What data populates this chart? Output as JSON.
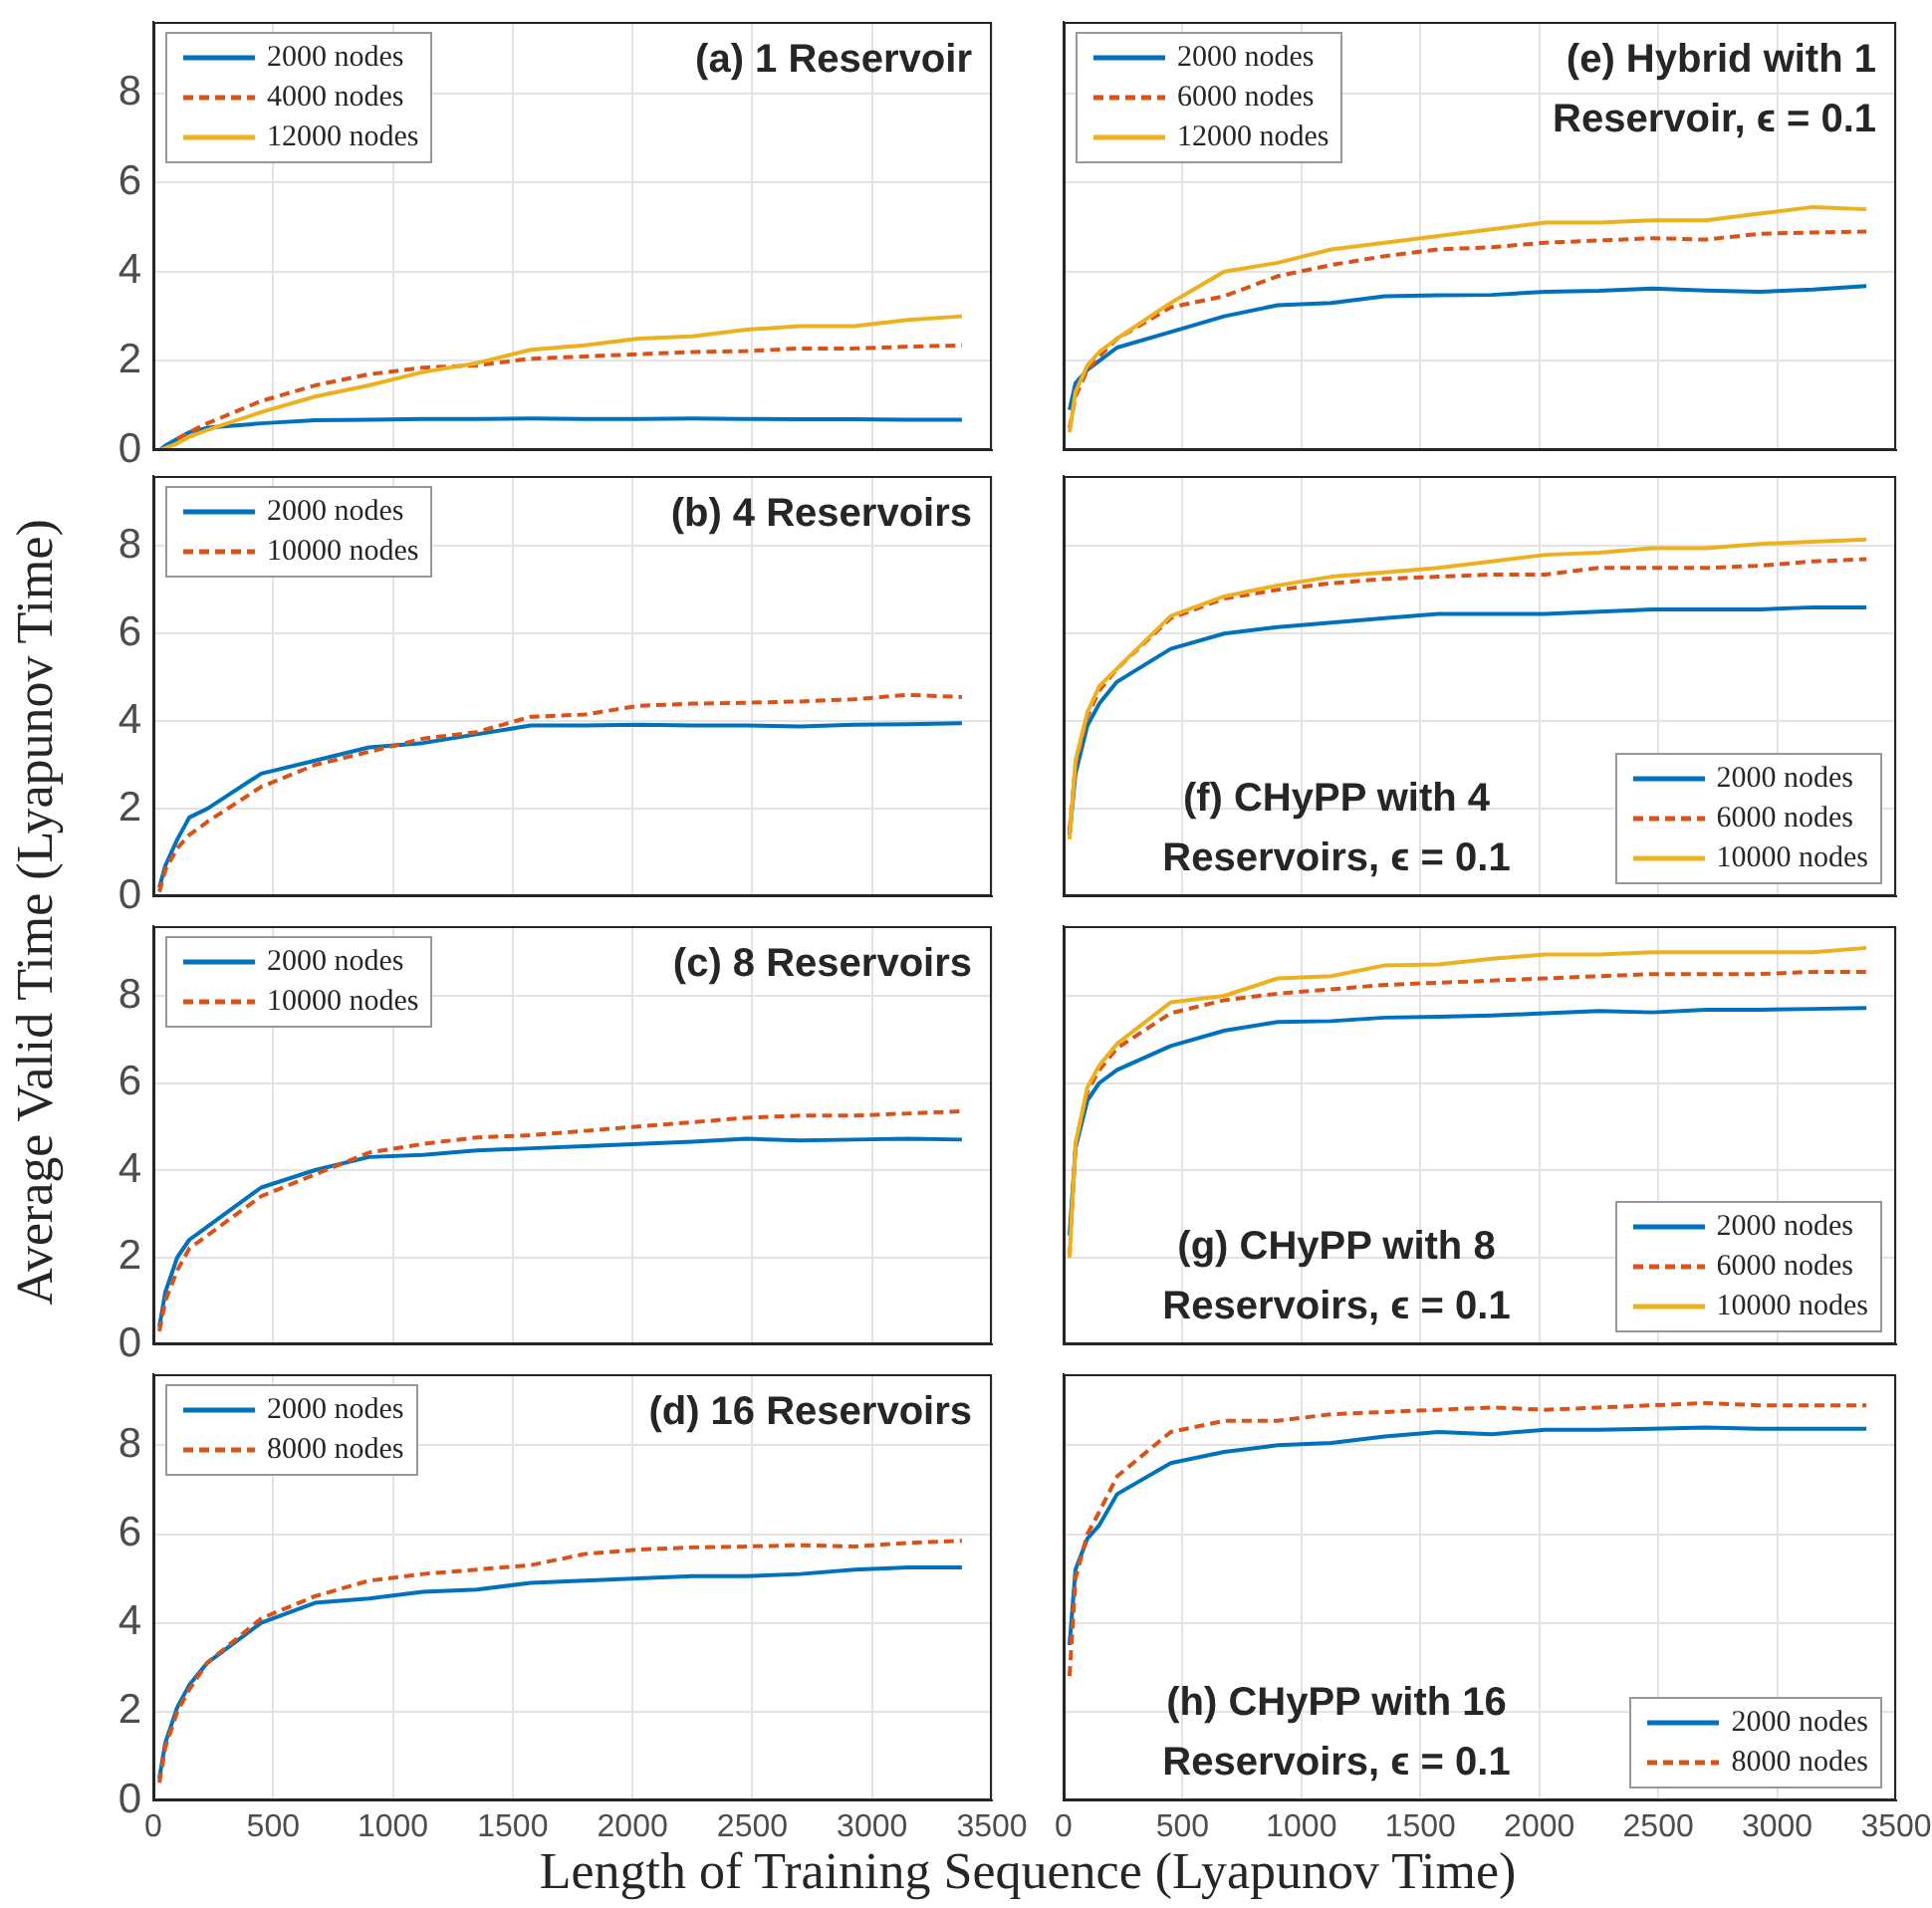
{
  "chart_data": [
    {
      "type": "line",
      "title": "(a) 1 Reservoir",
      "ylabel": "Average Valid Time (Lyapunov Time)",
      "x": [
        25,
        50,
        100,
        150,
        225,
        450,
        675,
        900,
        1125,
        1350,
        1575,
        1800,
        2025,
        2250,
        2475,
        2700,
        2925,
        3150,
        3375
      ],
      "xlim": [
        0,
        3500
      ],
      "xticks": [
        0,
        500,
        1000,
        1500,
        2000,
        2500,
        3000,
        3500
      ],
      "ylim": [
        0,
        9.6
      ],
      "yticks": [
        0,
        2,
        4,
        6,
        8
      ],
      "grid": true,
      "legend": "top left",
      "tick_labels": "y",
      "series": [
        {
          "name": "2000 nodes",
          "color": "#0072bd",
          "line_style": "solid",
          "values": [
            0,
            0.1,
            0.25,
            0.4,
            0.5,
            0.6,
            0.67,
            0.68,
            0.7,
            0.7,
            0.71,
            0.7,
            0.7,
            0.71,
            0.7,
            0.69,
            0.69,
            0.68,
            0.68
          ]
        },
        {
          "name": "4000 nodes",
          "color": "#d95319",
          "line_style": "dashed",
          "values": [
            null,
            null,
            0.25,
            0.4,
            0.6,
            1.1,
            1.45,
            1.7,
            1.85,
            1.9,
            2.05,
            2.1,
            2.15,
            2.2,
            2.22,
            2.28,
            2.28,
            2.32,
            2.35
          ]
        },
        {
          "name": "12000 nodes",
          "color": "#edb120",
          "line_style": "solid",
          "values": [
            0,
            0.05,
            0.15,
            0.3,
            0.45,
            0.85,
            1.2,
            1.45,
            1.75,
            1.95,
            2.25,
            2.35,
            2.5,
            2.55,
            2.7,
            2.78,
            2.78,
            2.92,
            3.0
          ]
        }
      ]
    },
    {
      "type": "line",
      "title": "(e) Hybrid with 1 Reservoir, ϵ = 0.1",
      "x": [
        25,
        50,
        100,
        150,
        225,
        450,
        675,
        900,
        1125,
        1350,
        1575,
        1800,
        2025,
        2250,
        2475,
        2700,
        2925,
        3150,
        3375
      ],
      "xlim": [
        0,
        3500
      ],
      "xticks": [
        0,
        500,
        1000,
        1500,
        2000,
        2500,
        3000,
        3500
      ],
      "ylim": [
        0,
        9.6
      ],
      "yticks": [
        0,
        2,
        4,
        6,
        8
      ],
      "grid": true,
      "legend": "top left",
      "tick_labels": false,
      "series": [
        {
          "name": "2000 nodes",
          "color": "#0072bd",
          "line_style": "solid",
          "values": [
            0.9,
            1.5,
            1.8,
            2.0,
            2.3,
            2.65,
            3.0,
            3.25,
            3.3,
            3.45,
            3.47,
            3.48,
            3.55,
            3.57,
            3.62,
            3.58,
            3.55,
            3.6,
            3.68
          ]
        },
        {
          "name": "6000 nodes",
          "color": "#d95319",
          "line_style": "dashed",
          "values": [
            0.5,
            1.2,
            1.8,
            2.1,
            2.5,
            3.2,
            3.45,
            3.9,
            4.15,
            4.35,
            4.5,
            4.55,
            4.65,
            4.7,
            4.75,
            4.72,
            4.85,
            4.88,
            4.9
          ]
        },
        {
          "name": "12000 nodes",
          "color": "#edb120",
          "line_style": "solid",
          "values": [
            0.4,
            1.3,
            1.9,
            2.2,
            2.5,
            3.3,
            4.0,
            4.2,
            4.5,
            4.65,
            4.8,
            4.95,
            5.1,
            5.1,
            5.15,
            5.15,
            5.3,
            5.45,
            5.4
          ]
        }
      ]
    },
    {
      "type": "line",
      "title": "(b) 4 Reservoirs",
      "x": [
        25,
        50,
        100,
        150,
        225,
        450,
        675,
        900,
        1125,
        1350,
        1575,
        1800,
        2025,
        2250,
        2475,
        2700,
        2925,
        3150,
        3375
      ],
      "xlim": [
        0,
        3500
      ],
      "xticks": [
        0,
        500,
        1000,
        1500,
        2000,
        2500,
        3000,
        3500
      ],
      "ylim": [
        0,
        9.6
      ],
      "yticks": [
        0,
        2,
        4,
        6,
        8
      ],
      "grid": true,
      "legend": "top left",
      "tick_labels": "y",
      "series": [
        {
          "name": "2000 nodes",
          "color": "#0072bd",
          "line_style": "solid",
          "values": [
            0.2,
            0.7,
            1.3,
            1.8,
            2.0,
            2.8,
            3.1,
            3.4,
            3.5,
            3.7,
            3.9,
            3.9,
            3.92,
            3.9,
            3.9,
            3.88,
            3.92,
            3.93,
            3.95
          ]
        },
        {
          "name": "10000 nodes",
          "color": "#d95319",
          "line_style": "dashed",
          "values": [
            0.1,
            0.6,
            1.1,
            1.4,
            1.7,
            2.5,
            3.0,
            3.3,
            3.6,
            3.75,
            4.1,
            4.15,
            4.35,
            4.4,
            4.42,
            4.45,
            4.5,
            4.6,
            4.55
          ]
        }
      ]
    },
    {
      "type": "line",
      "title": "(f) CHyPP with 4 Reservoirs, ϵ = 0.1",
      "x": [
        25,
        50,
        100,
        150,
        225,
        450,
        675,
        900,
        1125,
        1350,
        1575,
        1800,
        2025,
        2250,
        2475,
        2700,
        2925,
        3150,
        3375
      ],
      "xlim": [
        0,
        3500
      ],
      "xticks": [
        0,
        500,
        1000,
        1500,
        2000,
        2500,
        3000,
        3500
      ],
      "ylim": [
        0,
        9.6
      ],
      "yticks": [
        0,
        2,
        4,
        6,
        8
      ],
      "grid": true,
      "legend": "bottom right",
      "tick_labels": false,
      "series": [
        {
          "name": "2000 nodes",
          "color": "#0072bd",
          "line_style": "solid",
          "values": [
            1.4,
            2.8,
            3.9,
            4.4,
            4.9,
            5.65,
            6.0,
            6.15,
            6.25,
            6.35,
            6.45,
            6.45,
            6.45,
            6.5,
            6.55,
            6.55,
            6.55,
            6.6,
            6.6
          ]
        },
        {
          "name": "6000 nodes",
          "color": "#d95319",
          "line_style": "dashed",
          "values": [
            1.5,
            3.0,
            4.1,
            4.7,
            5.2,
            6.35,
            6.8,
            7.0,
            7.15,
            7.25,
            7.3,
            7.35,
            7.35,
            7.5,
            7.5,
            7.5,
            7.55,
            7.65,
            7.7
          ]
        },
        {
          "name": "10000 nodes",
          "color": "#edb120",
          "line_style": "solid",
          "values": [
            1.3,
            3.1,
            4.2,
            4.8,
            5.2,
            6.4,
            6.85,
            7.1,
            7.3,
            7.4,
            7.5,
            7.65,
            7.8,
            7.85,
            7.95,
            7.95,
            8.05,
            8.1,
            8.15
          ]
        }
      ]
    },
    {
      "type": "line",
      "title": "(c) 8 Reservoirs",
      "x": [
        25,
        50,
        100,
        150,
        225,
        450,
        675,
        900,
        1125,
        1350,
        1575,
        1800,
        2025,
        2250,
        2475,
        2700,
        2925,
        3150,
        3375
      ],
      "xlim": [
        0,
        3500
      ],
      "xticks": [
        0,
        500,
        1000,
        1500,
        2000,
        2500,
        3000,
        3500
      ],
      "ylim": [
        0,
        9.6
      ],
      "yticks": [
        0,
        2,
        4,
        6,
        8
      ],
      "grid": true,
      "legend": "top left",
      "tick_labels": "y",
      "series": [
        {
          "name": "2000 nodes",
          "color": "#0072bd",
          "line_style": "solid",
          "values": [
            0.4,
            1.2,
            2.0,
            2.4,
            2.7,
            3.6,
            4.0,
            4.3,
            4.35,
            4.45,
            4.5,
            4.55,
            4.6,
            4.65,
            4.72,
            4.68,
            4.7,
            4.72,
            4.7
          ]
        },
        {
          "name": "10000 nodes",
          "color": "#d95319",
          "line_style": "dashed",
          "values": [
            0.3,
            1.0,
            1.7,
            2.2,
            2.5,
            3.4,
            3.9,
            4.4,
            4.6,
            4.75,
            4.8,
            4.9,
            5.0,
            5.1,
            5.2,
            5.25,
            5.25,
            5.3,
            5.35
          ]
        }
      ]
    },
    {
      "type": "line",
      "title": "(g) CHyPP with 8 Reservoirs, ϵ = 0.1",
      "x": [
        25,
        50,
        100,
        150,
        225,
        450,
        675,
        900,
        1125,
        1350,
        1575,
        1800,
        2025,
        2250,
        2475,
        2700,
        2925,
        3150,
        3375
      ],
      "xlim": [
        0,
        3500
      ],
      "xticks": [
        0,
        500,
        1000,
        1500,
        2000,
        2500,
        3000,
        3500
      ],
      "ylim": [
        0,
        9.6
      ],
      "yticks": [
        0,
        2,
        4,
        6,
        8
      ],
      "grid": true,
      "legend": "bottom right",
      "tick_labels": false,
      "series": [
        {
          "name": "2000 nodes",
          "color": "#0072bd",
          "line_style": "solid",
          "values": [
            2.5,
            4.5,
            5.6,
            6.0,
            6.3,
            6.85,
            7.2,
            7.4,
            7.42,
            7.5,
            7.52,
            7.55,
            7.6,
            7.65,
            7.62,
            7.68,
            7.68,
            7.7,
            7.72
          ]
        },
        {
          "name": "6000 nodes",
          "color": "#d95319",
          "line_style": "dashed",
          "values": [
            2.0,
            4.6,
            5.8,
            6.3,
            6.8,
            7.6,
            7.9,
            8.05,
            8.15,
            8.25,
            8.3,
            8.35,
            8.4,
            8.45,
            8.5,
            8.5,
            8.5,
            8.55,
            8.55
          ]
        },
        {
          "name": "10000 nodes",
          "color": "#edb120",
          "line_style": "solid",
          "values": [
            2.0,
            4.6,
            5.9,
            6.4,
            6.9,
            7.85,
            8.0,
            8.4,
            8.45,
            8.7,
            8.72,
            8.85,
            8.95,
            8.95,
            9.0,
            9.0,
            9.0,
            9.0,
            9.1
          ]
        }
      ]
    },
    {
      "type": "line",
      "title": "(d) 16 Reservoirs",
      "xlabel": "Length of Training Sequence (Lyapunov Time)",
      "x": [
        25,
        50,
        100,
        150,
        225,
        450,
        675,
        900,
        1125,
        1350,
        1575,
        1800,
        2025,
        2250,
        2475,
        2700,
        2925,
        3150,
        3375
      ],
      "xlim": [
        0,
        3500
      ],
      "xticks": [
        0,
        500,
        1000,
        1500,
        2000,
        2500,
        3000,
        3500
      ],
      "ylim": [
        0,
        9.6
      ],
      "yticks": [
        0,
        2,
        4,
        6,
        8
      ],
      "grid": true,
      "legend": "top left",
      "series": [
        {
          "name": "2000 nodes",
          "color": "#0072bd",
          "line_style": "solid",
          "values": [
            0.5,
            1.3,
            2.1,
            2.6,
            3.1,
            4.0,
            4.45,
            4.55,
            4.7,
            4.75,
            4.9,
            4.95,
            5.0,
            5.05,
            5.05,
            5.1,
            5.2,
            5.25,
            5.25
          ]
        },
        {
          "name": "8000 nodes",
          "color": "#d95319",
          "line_style": "dashed",
          "values": [
            0.4,
            1.2,
            2.0,
            2.5,
            3.1,
            4.1,
            4.6,
            4.95,
            5.1,
            5.2,
            5.3,
            5.55,
            5.65,
            5.7,
            5.72,
            5.75,
            5.72,
            5.8,
            5.85
          ]
        }
      ]
    },
    {
      "type": "line",
      "title": "(h) CHyPP with 16 Reservoirs, ϵ = 0.1",
      "x": [
        25,
        50,
        100,
        150,
        225,
        450,
        675,
        900,
        1125,
        1350,
        1575,
        1800,
        2025,
        2250,
        2475,
        2700,
        2925,
        3150,
        3375
      ],
      "xlim": [
        0,
        3500
      ],
      "xticks": [
        0,
        500,
        1000,
        1500,
        2000,
        2500,
        3000,
        3500
      ],
      "ylim": [
        0,
        9.6
      ],
      "yticks": [
        0,
        2,
        4,
        6,
        8
      ],
      "grid": true,
      "legend": "bottom right",
      "tick_labels": "x",
      "series": [
        {
          "name": "2000 nodes",
          "color": "#0072bd",
          "line_style": "solid",
          "values": [
            3.5,
            5.2,
            5.9,
            6.2,
            6.9,
            7.6,
            7.85,
            8.0,
            8.05,
            8.2,
            8.3,
            8.25,
            8.35,
            8.35,
            8.37,
            8.4,
            8.37,
            8.37,
            8.37
          ]
        },
        {
          "name": "8000 nodes",
          "color": "#d95319",
          "line_style": "dashed",
          "values": [
            2.8,
            5.0,
            6.0,
            6.5,
            7.3,
            8.3,
            8.55,
            8.55,
            8.7,
            8.75,
            8.8,
            8.85,
            8.8,
            8.85,
            8.9,
            8.95,
            8.9,
            8.9,
            8.9
          ]
        }
      ]
    }
  ]
}
